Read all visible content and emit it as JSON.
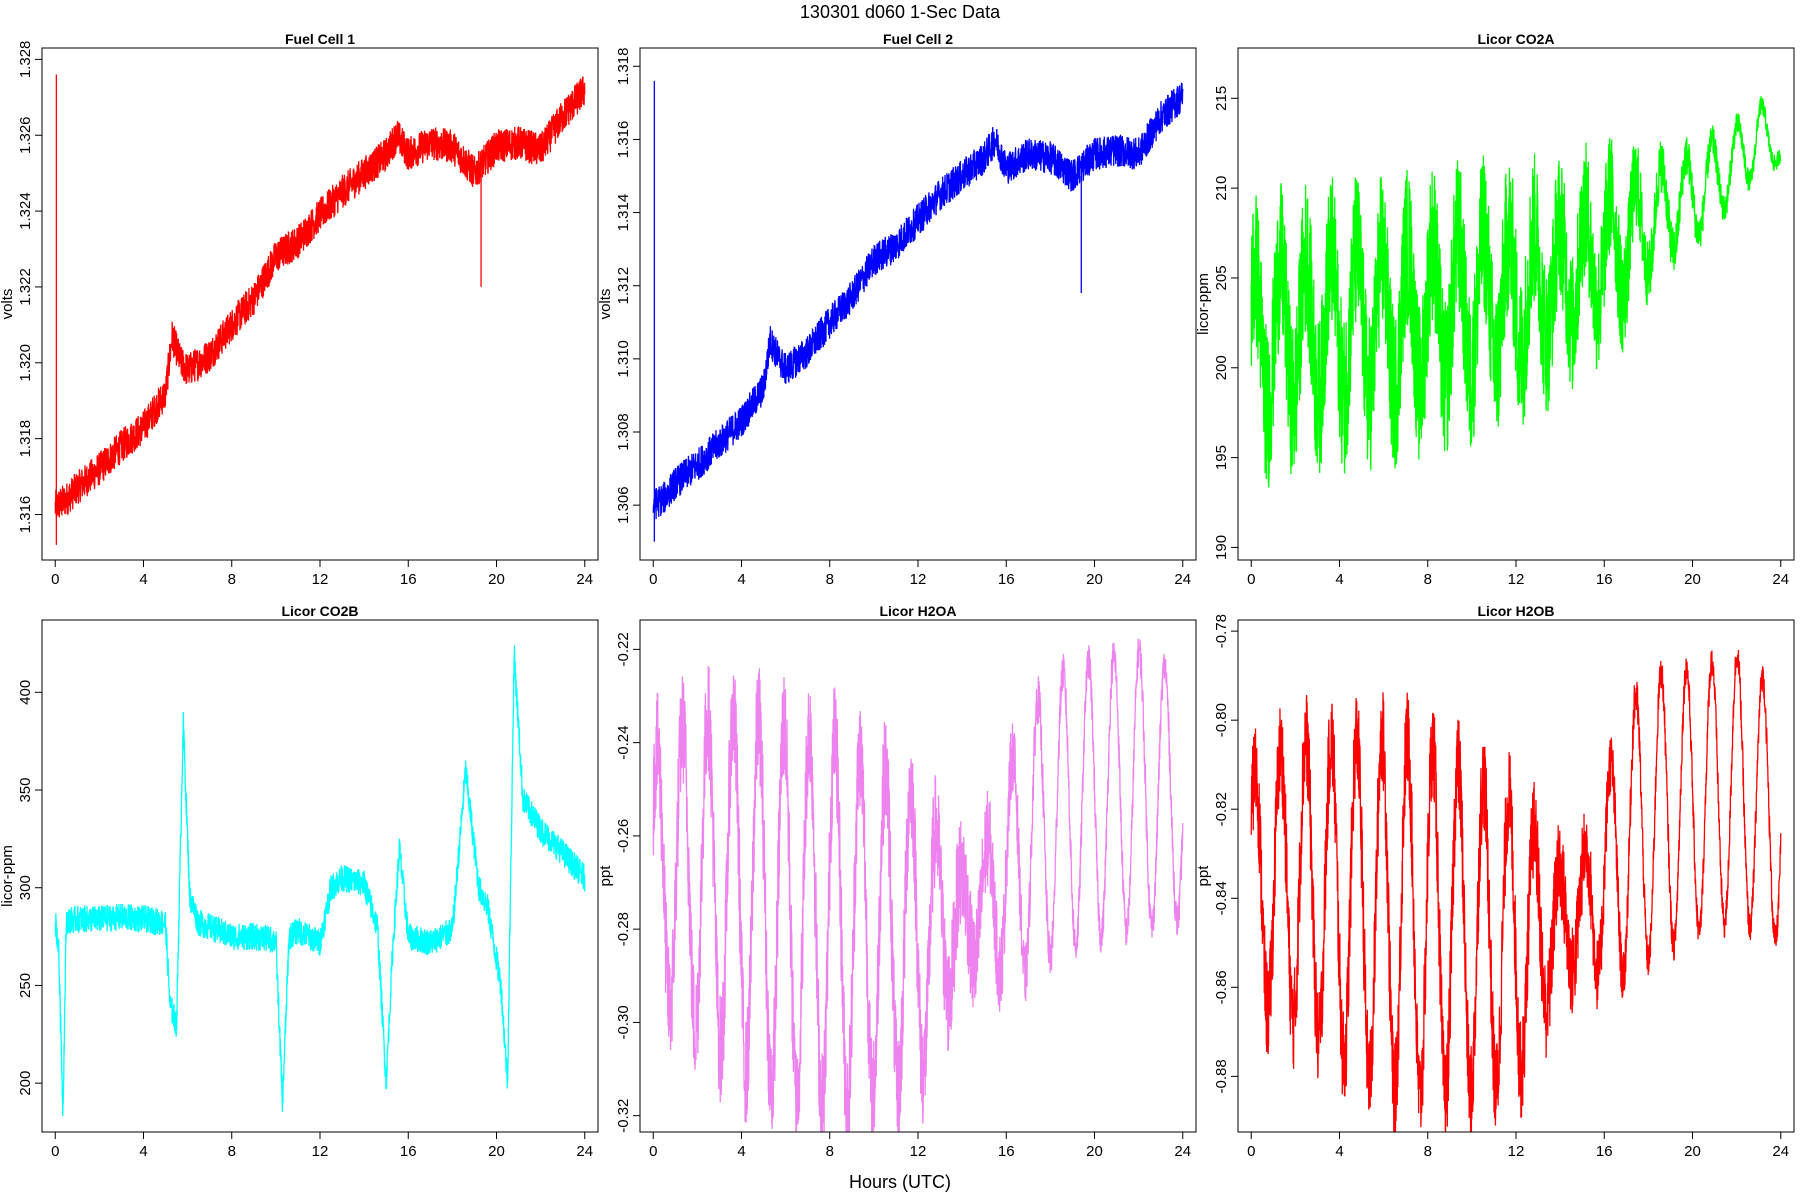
{
  "figure": {
    "title": "130301   d060   1-Sec Data",
    "xlabel": "Hours (UTC)"
  },
  "chart_data": [
    {
      "type": "line",
      "title": "Fuel Cell 1",
      "ylabel": "volts",
      "color": "#ff0000",
      "xlim": [
        -0.6,
        24.6
      ],
      "ylim": [
        1.3148,
        1.3283
      ],
      "xticks": [
        0,
        4,
        8,
        12,
        16,
        20,
        24
      ],
      "yticks": [
        1.316,
        1.318,
        1.32,
        1.322,
        1.324,
        1.326,
        1.328
      ],
      "ytick_labels": [
        "1.316",
        "1.318",
        "1.320",
        "1.322",
        "1.324",
        "1.326",
        "1.328"
      ],
      "noise": 0.00045,
      "x": [
        0,
        0.5,
        1,
        2,
        3,
        4,
        5,
        5.3,
        5.7,
        6,
        7,
        8,
        9,
        10,
        11,
        12,
        13,
        14,
        15,
        15.5,
        16,
        17,
        18,
        19,
        20,
        21,
        22,
        23,
        24
      ],
      "y": [
        1.3162,
        1.3164,
        1.3167,
        1.3172,
        1.3178,
        1.3183,
        1.3192,
        1.3207,
        1.32,
        1.3198,
        1.3202,
        1.321,
        1.3217,
        1.3228,
        1.3232,
        1.3239,
        1.3245,
        1.325,
        1.3255,
        1.326,
        1.3255,
        1.3258,
        1.3257,
        1.325,
        1.3257,
        1.3258,
        1.3256,
        1.3265,
        1.3272
      ],
      "spikes": [
        {
          "x": 0.05,
          "y0": 1.3152,
          "y1": 1.3276
        },
        {
          "x": 19.3,
          "y0": 1.322,
          "y1": 1.325
        }
      ]
    },
    {
      "type": "line",
      "title": "Fuel Cell 2",
      "ylabel": "volts",
      "color": "#0000ff",
      "xlim": [
        -0.6,
        24.6
      ],
      "ylim": [
        1.3045,
        1.3185
      ],
      "xticks": [
        0,
        4,
        8,
        12,
        16,
        20,
        24
      ],
      "yticks": [
        1.306,
        1.308,
        1.31,
        1.312,
        1.314,
        1.316,
        1.318
      ],
      "ytick_labels": [
        "1.306",
        "1.308",
        "1.310",
        "1.312",
        "1.314",
        "1.316",
        "1.318"
      ],
      "noise": 0.00045,
      "x": [
        0,
        0.5,
        1,
        2,
        3,
        4,
        5,
        5.3,
        5.7,
        6,
        7,
        8,
        9,
        10,
        11,
        12,
        13,
        14,
        15,
        15.5,
        16,
        17,
        18,
        19,
        20,
        21,
        22,
        23,
        24
      ],
      "y": [
        1.306,
        1.3062,
        1.3066,
        1.3071,
        1.3077,
        1.3083,
        1.3092,
        1.3105,
        1.31,
        1.3097,
        1.3102,
        1.311,
        1.3117,
        1.3127,
        1.3131,
        1.3138,
        1.3145,
        1.315,
        1.3155,
        1.316,
        1.3152,
        1.3156,
        1.3155,
        1.315,
        1.3156,
        1.3157,
        1.3156,
        1.3166,
        1.3172
      ],
      "spikes": [
        {
          "x": 0.05,
          "y0": 1.305,
          "y1": 1.3176
        },
        {
          "x": 19.4,
          "y0": 1.3118,
          "y1": 1.315
        }
      ]
    },
    {
      "type": "line",
      "title": "Licor CO2A",
      "ylabel": "licor-ppm",
      "color": "#00ff00",
      "xlim": [
        -0.6,
        24.6
      ],
      "ylim": [
        189.3,
        217.8
      ],
      "xticks": [
        0,
        4,
        8,
        12,
        16,
        20,
        24
      ],
      "yticks": [
        190,
        195,
        200,
        205,
        210,
        215
      ],
      "ytick_labels": [
        "190",
        "195",
        "200",
        "205",
        "210",
        "215"
      ],
      "noise": 4.5,
      "x": [
        0,
        2,
        4,
        6,
        8,
        10,
        12,
        14,
        16,
        17,
        18,
        19,
        20,
        21,
        22,
        23,
        24
      ],
      "y": [
        201.5,
        202.0,
        202.5,
        202.5,
        203.0,
        203.5,
        204.0,
        205.0,
        206.5,
        207.0,
        208.0,
        209.0,
        209.5,
        210.5,
        211.5,
        213.0,
        212.0
      ],
      "osc": [
        4.0,
        4.0,
        4.0,
        4.0,
        4.0,
        4.0,
        3.5,
        3.0,
        3.0,
        3.0,
        2.8,
        2.6,
        2.4,
        2.2,
        2.0,
        2.0,
        0.5
      ],
      "noise_env": [
        1.0,
        1.0,
        1.0,
        1.0,
        1.0,
        1.0,
        1.0,
        0.9,
        0.8,
        0.7,
        0.4,
        0.3,
        0.25,
        0.2,
        0.15,
        0.12,
        0.1
      ],
      "period": 1.15,
      "spikes": []
    },
    {
      "type": "line",
      "title": "Licor CO2B",
      "ylabel": "licor-ppm",
      "color": "#00ffff",
      "xlim": [
        -0.6,
        24.6
      ],
      "ylim": [
        175,
        437
      ],
      "xticks": [
        0,
        4,
        8,
        12,
        16,
        20,
        24
      ],
      "yticks": [
        200,
        250,
        300,
        350,
        400
      ],
      "ytick_labels": [
        "200",
        "250",
        "300",
        "350",
        "400"
      ],
      "noise": 7,
      "x": [
        0,
        0.15,
        0.35,
        0.5,
        1,
        2,
        3,
        4,
        5,
        5.2,
        5.5,
        5.8,
        6.1,
        6.5,
        7,
        8,
        9,
        10,
        10.3,
        10.6,
        11,
        12,
        12.5,
        13,
        14,
        14.6,
        15,
        15.3,
        15.6,
        16,
        17,
        18,
        18.6,
        19.2,
        19.6,
        20.2,
        20.5,
        20.8,
        21.2,
        22,
        23,
        24
      ],
      "y": [
        283,
        270,
        186,
        283,
        284,
        284,
        285,
        284,
        282,
        240,
        230,
        385,
        295,
        282,
        280,
        275,
        275,
        273,
        190,
        275,
        278,
        272,
        300,
        305,
        302,
        280,
        200,
        270,
        320,
        275,
        272,
        278,
        360,
        300,
        290,
        250,
        200,
        420,
        345,
        330,
        318,
        305
      ],
      "spikes": []
    },
    {
      "type": "line",
      "title": "Licor H2OA",
      "ylabel": "ppt",
      "color": "#ee82ee",
      "xlim": [
        -0.6,
        24.6
      ],
      "ylim": [
        -0.3235,
        -0.2137
      ],
      "xticks": [
        0,
        4,
        8,
        12,
        16,
        20,
        24
      ],
      "yticks": [
        -0.32,
        -0.3,
        -0.28,
        -0.26,
        -0.24,
        -0.22
      ],
      "ytick_labels": [
        "-0.32",
        "-0.30",
        "-0.28",
        "-0.26",
        "-0.24",
        "-0.22"
      ],
      "noise": 0.012,
      "x": [
        0,
        2,
        4,
        6,
        8,
        10,
        12,
        13,
        14,
        15,
        16,
        17,
        18,
        20,
        22,
        24
      ],
      "y": [
        -0.268,
        -0.268,
        -0.272,
        -0.276,
        -0.278,
        -0.28,
        -0.282,
        -0.28,
        -0.278,
        -0.275,
        -0.268,
        -0.262,
        -0.256,
        -0.252,
        -0.25,
        -0.252
      ],
      "osc": [
        0.026,
        0.034,
        0.038,
        0.04,
        0.04,
        0.036,
        0.032,
        0.02,
        0.01,
        0.012,
        0.022,
        0.028,
        0.03,
        0.03,
        0.03,
        0.026
      ],
      "noise_env": [
        1.0,
        1.0,
        1.0,
        1.0,
        1.0,
        1.0,
        1.0,
        1.0,
        1.0,
        0.9,
        0.7,
        0.5,
        0.35,
        0.3,
        0.3,
        0.3
      ],
      "period": 1.15,
      "spikes": []
    },
    {
      "type": "line",
      "title": "Licor H2OB",
      "ylabel": "ppt",
      "color": "#ff0000",
      "xlim": [
        -0.6,
        24.6
      ],
      "ylim": [
        -0.8925,
        -0.7775
      ],
      "xticks": [
        0,
        4,
        8,
        12,
        16,
        20,
        24
      ],
      "yticks": [
        -0.88,
        -0.86,
        -0.84,
        -0.82,
        -0.8,
        -0.78
      ],
      "ytick_labels": [
        "-0.88",
        "-0.86",
        "-0.84",
        "-0.82",
        "-0.80",
        "-0.78"
      ],
      "noise": 0.011,
      "x": [
        0,
        2,
        4,
        6,
        8,
        10,
        12,
        13,
        14,
        15,
        16,
        17,
        18,
        20,
        22,
        24
      ],
      "y": [
        -0.838,
        -0.836,
        -0.84,
        -0.843,
        -0.845,
        -0.848,
        -0.85,
        -0.848,
        -0.846,
        -0.843,
        -0.836,
        -0.828,
        -0.822,
        -0.818,
        -0.815,
        -0.822
      ],
      "osc": [
        0.026,
        0.032,
        0.036,
        0.04,
        0.04,
        0.036,
        0.032,
        0.022,
        0.012,
        0.012,
        0.022,
        0.03,
        0.032,
        0.03,
        0.03,
        0.028
      ],
      "noise_env": [
        1.0,
        1.0,
        1.0,
        1.0,
        1.0,
        1.0,
        1.0,
        1.0,
        1.0,
        0.9,
        0.7,
        0.5,
        0.35,
        0.3,
        0.3,
        0.3
      ],
      "period": 1.15,
      "spikes": []
    }
  ]
}
